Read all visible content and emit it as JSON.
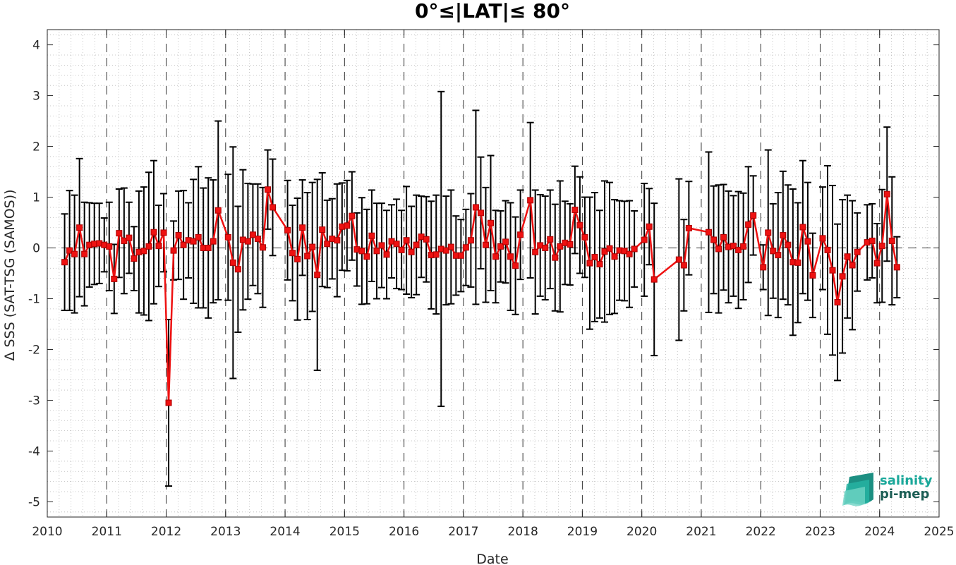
{
  "chart_data": {
    "type": "line",
    "title": "0°≤|LAT|≤ 80°",
    "xlabel": "Date",
    "ylabel": "Δ SSS (SAT-TSG (SAMOS))",
    "xlim": [
      2010,
      2025
    ],
    "ylim": [
      -5.3,
      4.3
    ],
    "x_ticks": [
      "2010",
      "2011",
      "2012",
      "2013",
      "2014",
      "2015",
      "2016",
      "2017",
      "2018",
      "2019",
      "2020",
      "2021",
      "2022",
      "2023",
      "2024",
      "2025"
    ],
    "y_ticks": [
      "-5",
      "-4",
      "-3",
      "-2",
      "-1",
      "0",
      "1",
      "2",
      "3",
      "4"
    ],
    "grid": "minor dotted",
    "year_separators": "dashed vertical lines at each year",
    "zero_line": "dashed horizontal line at 0",
    "series": [
      {
        "marker": "square",
        "color": "#ee1111",
        "errorbar_color": "#000000",
        "points": [
          {
            "x": "2010-04",
            "y": -0.28,
            "err": 0.95
          },
          {
            "x": "2010-05",
            "y": -0.05,
            "err": 1.18
          },
          {
            "x": "2010-06",
            "y": -0.12,
            "err": 1.16
          },
          {
            "x": "2010-07",
            "y": 0.4,
            "err": 1.36
          },
          {
            "x": "2010-08",
            "y": -0.12,
            "err": 1.02
          },
          {
            "x": "2010-09",
            "y": 0.06,
            "err": 0.83
          },
          {
            "x": "2010-10",
            "y": 0.08,
            "err": 0.8
          },
          {
            "x": "2010-11",
            "y": 0.09,
            "err": 0.79
          },
          {
            "x": "2010-12",
            "y": 0.06,
            "err": 0.53
          },
          {
            "x": "2011-01",
            "y": 0.03,
            "err": 0.87
          },
          {
            "x": "2011-02",
            "y": -0.61,
            "err": 0.68
          },
          {
            "x": "2011-03",
            "y": 0.29,
            "err": 0.87
          },
          {
            "x": "2011-04",
            "y": 0.14,
            "err": 1.04
          },
          {
            "x": "2011-05",
            "y": 0.2,
            "err": 0.7
          },
          {
            "x": "2011-06",
            "y": -0.21,
            "err": 0.63
          },
          {
            "x": "2011-07",
            "y": -0.08,
            "err": 1.2
          },
          {
            "x": "2011-08",
            "y": -0.06,
            "err": 1.26
          },
          {
            "x": "2011-09",
            "y": 0.03,
            "err": 1.46
          },
          {
            "x": "2011-10",
            "y": 0.31,
            "err": 1.41
          },
          {
            "x": "2011-11",
            "y": 0.04,
            "err": 0.8
          },
          {
            "x": "2011-12",
            "y": 0.3,
            "err": 0.77
          },
          {
            "x": "2012-01",
            "y": -3.05,
            "err": 1.64
          },
          {
            "x": "2012-02",
            "y": -0.05,
            "err": 0.58
          },
          {
            "x": "2012-03",
            "y": 0.25,
            "err": 0.87
          },
          {
            "x": "2012-04",
            "y": 0.06,
            "err": 1.07
          },
          {
            "x": "2012-05",
            "y": 0.15,
            "err": 0.74
          },
          {
            "x": "2012-06",
            "y": 0.13,
            "err": 1.22
          },
          {
            "x": "2012-07",
            "y": 0.21,
            "err": 1.39
          },
          {
            "x": "2012-08",
            "y": 0.0,
            "err": 1.18
          },
          {
            "x": "2012-09",
            "y": 0.0,
            "err": 1.38
          },
          {
            "x": "2012-10",
            "y": 0.13,
            "err": 1.21
          },
          {
            "x": "2012-11",
            "y": 0.74,
            "err": 1.76
          },
          {
            "x": "2013-01",
            "y": 0.21,
            "err": 1.24
          },
          {
            "x": "2013-02",
            "y": -0.29,
            "err": 2.28
          },
          {
            "x": "2013-03",
            "y": -0.42,
            "err": 1.24
          },
          {
            "x": "2013-04",
            "y": 0.16,
            "err": 1.38
          },
          {
            "x": "2013-05",
            "y": 0.13,
            "err": 1.14
          },
          {
            "x": "2013-06",
            "y": 0.26,
            "err": 1.0
          },
          {
            "x": "2013-07",
            "y": 0.18,
            "err": 1.08
          },
          {
            "x": "2013-08",
            "y": 0.01,
            "err": 1.18
          },
          {
            "x": "2013-09",
            "y": 1.15,
            "err": 0.78
          },
          {
            "x": "2013-10",
            "y": 0.8,
            "err": 0.95
          },
          {
            "x": "2014-01",
            "y": 0.35,
            "err": 0.98
          },
          {
            "x": "2014-02",
            "y": -0.1,
            "err": 0.94
          },
          {
            "x": "2014-03",
            "y": -0.22,
            "err": 1.2
          },
          {
            "x": "2014-04",
            "y": 0.4,
            "err": 0.94
          },
          {
            "x": "2014-05",
            "y": -0.16,
            "err": 1.25
          },
          {
            "x": "2014-06",
            "y": 0.02,
            "err": 1.27
          },
          {
            "x": "2014-07",
            "y": -0.53,
            "err": 1.88
          },
          {
            "x": "2014-08",
            "y": 0.36,
            "err": 1.12
          },
          {
            "x": "2014-09",
            "y": 0.08,
            "err": 0.86
          },
          {
            "x": "2014-10",
            "y": 0.18,
            "err": 0.79
          },
          {
            "x": "2014-11",
            "y": 0.15,
            "err": 1.11
          },
          {
            "x": "2014-12",
            "y": 0.42,
            "err": 0.86
          },
          {
            "x": "2015-01",
            "y": 0.44,
            "err": 0.89
          },
          {
            "x": "2015-02",
            "y": 0.63,
            "err": 0.87
          },
          {
            "x": "2015-03",
            "y": -0.03,
            "err": 0.72
          },
          {
            "x": "2015-04",
            "y": -0.06,
            "err": 1.05
          },
          {
            "x": "2015-05",
            "y": -0.17,
            "err": 0.93
          },
          {
            "x": "2015-06",
            "y": 0.24,
            "err": 0.9
          },
          {
            "x": "2015-07",
            "y": -0.06,
            "err": 0.94
          },
          {
            "x": "2015-08",
            "y": 0.05,
            "err": 0.83
          },
          {
            "x": "2015-09",
            "y": -0.13,
            "err": 0.87
          },
          {
            "x": "2015-10",
            "y": 0.13,
            "err": 0.72
          },
          {
            "x": "2015-11",
            "y": 0.08,
            "err": 0.88
          },
          {
            "x": "2015-12",
            "y": -0.04,
            "err": 0.78
          },
          {
            "x": "2016-01",
            "y": 0.15,
            "err": 1.06
          },
          {
            "x": "2016-02",
            "y": -0.08,
            "err": 0.9
          },
          {
            "x": "2016-03",
            "y": 0.06,
            "err": 0.98
          },
          {
            "x": "2016-04",
            "y": 0.22,
            "err": 0.8
          },
          {
            "x": "2016-05",
            "y": 0.17,
            "err": 0.84
          },
          {
            "x": "2016-06",
            "y": -0.14,
            "err": 1.06
          },
          {
            "x": "2016-07",
            "y": -0.13,
            "err": 1.17
          },
          {
            "x": "2016-08",
            "y": -0.02,
            "err": 3.1
          },
          {
            "x": "2016-09",
            "y": -0.05,
            "err": 1.07
          },
          {
            "x": "2016-10",
            "y": 0.02,
            "err": 1.12
          },
          {
            "x": "2016-11",
            "y": -0.15,
            "err": 0.78
          },
          {
            "x": "2016-12",
            "y": -0.15,
            "err": 0.71
          },
          {
            "x": "2017-01",
            "y": 0.01,
            "err": 0.75
          },
          {
            "x": "2017-02",
            "y": 0.15,
            "err": 0.92
          },
          {
            "x": "2017-03",
            "y": 0.8,
            "err": 1.91
          },
          {
            "x": "2017-04",
            "y": 0.69,
            "err": 1.1
          },
          {
            "x": "2017-05",
            "y": 0.06,
            "err": 1.13
          },
          {
            "x": "2017-06",
            "y": 0.49,
            "err": 1.33
          },
          {
            "x": "2017-07",
            "y": -0.17,
            "err": 0.91
          },
          {
            "x": "2017-08",
            "y": 0.03,
            "err": 0.7
          },
          {
            "x": "2017-09",
            "y": 0.12,
            "err": 0.81
          },
          {
            "x": "2017-10",
            "y": -0.17,
            "err": 1.06
          },
          {
            "x": "2017-11",
            "y": -0.35,
            "err": 0.96
          },
          {
            "x": "2017-12",
            "y": 0.26,
            "err": 0.88
          },
          {
            "x": "2018-02",
            "y": 0.94,
            "err": 1.53
          },
          {
            "x": "2018-03",
            "y": -0.08,
            "err": 1.22
          },
          {
            "x": "2018-04",
            "y": 0.05,
            "err": 1.0
          },
          {
            "x": "2018-05",
            "y": 0.0,
            "err": 1.02
          },
          {
            "x": "2018-06",
            "y": 0.17,
            "err": 0.97
          },
          {
            "x": "2018-07",
            "y": -0.19,
            "err": 1.05
          },
          {
            "x": "2018-08",
            "y": 0.03,
            "err": 1.29
          },
          {
            "x": "2018-09",
            "y": 0.1,
            "err": 0.82
          },
          {
            "x": "2018-10",
            "y": 0.07,
            "err": 0.8
          },
          {
            "x": "2018-11",
            "y": 0.75,
            "err": 0.86
          },
          {
            "x": "2018-12",
            "y": 0.45,
            "err": 0.95
          },
          {
            "x": "2019-01",
            "y": 0.21,
            "err": 0.79
          },
          {
            "x": "2019-02",
            "y": -0.3,
            "err": 1.3
          },
          {
            "x": "2019-03",
            "y": -0.18,
            "err": 1.27
          },
          {
            "x": "2019-04",
            "y": -0.32,
            "err": 1.06
          },
          {
            "x": "2019-05",
            "y": -0.07,
            "err": 1.39
          },
          {
            "x": "2019-06",
            "y": -0.01,
            "err": 1.3
          },
          {
            "x": "2019-07",
            "y": -0.17,
            "err": 1.12
          },
          {
            "x": "2019-08",
            "y": -0.05,
            "err": 0.98
          },
          {
            "x": "2019-09",
            "y": -0.06,
            "err": 0.98
          },
          {
            "x": "2019-10",
            "y": -0.12,
            "err": 1.05
          },
          {
            "x": "2019-11",
            "y": -0.02,
            "err": 0.75
          },
          {
            "x": "2020-01",
            "y": 0.16,
            "err": 1.11
          },
          {
            "x": "2020-02",
            "y": 0.42,
            "err": 0.75
          },
          {
            "x": "2020-03",
            "y": -0.62,
            "err": 1.5
          },
          {
            "x": "2020-08",
            "y": -0.23,
            "err": 1.59
          },
          {
            "x": "2020-09",
            "y": -0.34,
            "err": 0.9
          },
          {
            "x": "2020-10",
            "y": 0.39,
            "err": 0.92
          },
          {
            "x": "2021-02",
            "y": 0.31,
            "err": 1.58
          },
          {
            "x": "2021-03",
            "y": 0.16,
            "err": 1.06
          },
          {
            "x": "2021-04",
            "y": -0.02,
            "err": 1.26
          },
          {
            "x": "2021-05",
            "y": 0.21,
            "err": 1.04
          },
          {
            "x": "2021-06",
            "y": 0.02,
            "err": 1.1
          },
          {
            "x": "2021-07",
            "y": 0.04,
            "err": 0.99
          },
          {
            "x": "2021-08",
            "y": -0.04,
            "err": 1.15
          },
          {
            "x": "2021-09",
            "y": 0.03,
            "err": 1.05
          },
          {
            "x": "2021-10",
            "y": 0.46,
            "err": 1.14
          },
          {
            "x": "2021-11",
            "y": 0.64,
            "err": 0.78
          },
          {
            "x": "2022-01",
            "y": -0.38,
            "err": 0.44
          },
          {
            "x": "2022-02",
            "y": 0.3,
            "err": 1.63
          },
          {
            "x": "2022-03",
            "y": -0.06,
            "err": 0.93
          },
          {
            "x": "2022-04",
            "y": -0.14,
            "err": 1.23
          },
          {
            "x": "2022-05",
            "y": 0.25,
            "err": 1.26
          },
          {
            "x": "2022-06",
            "y": 0.06,
            "err": 1.18
          },
          {
            "x": "2022-07",
            "y": -0.28,
            "err": 1.44
          },
          {
            "x": "2022-08",
            "y": -0.29,
            "err": 1.18
          },
          {
            "x": "2022-09",
            "y": 0.41,
            "err": 1.31
          },
          {
            "x": "2022-10",
            "y": 0.13,
            "err": 1.16
          },
          {
            "x": "2022-11",
            "y": -0.54,
            "err": 0.83
          },
          {
            "x": "2023-01",
            "y": 0.19,
            "err": 1.01
          },
          {
            "x": "2023-02",
            "y": -0.04,
            "err": 1.66
          },
          {
            "x": "2023-03",
            "y": -0.44,
            "err": 1.67
          },
          {
            "x": "2023-04",
            "y": -1.07,
            "err": 1.54
          },
          {
            "x": "2023-05",
            "y": -0.56,
            "err": 1.51
          },
          {
            "x": "2023-06",
            "y": -0.17,
            "err": 1.21
          },
          {
            "x": "2023-07",
            "y": -0.34,
            "err": 1.27
          },
          {
            "x": "2023-08",
            "y": -0.08,
            "err": 0.77
          },
          {
            "x": "2023-10",
            "y": 0.11,
            "err": 0.74
          },
          {
            "x": "2023-11",
            "y": 0.14,
            "err": 0.73
          },
          {
            "x": "2023-12",
            "y": -0.3,
            "err": 0.78
          },
          {
            "x": "2024-01",
            "y": 0.04,
            "err": 1.11
          },
          {
            "x": "2024-02",
            "y": 1.06,
            "err": 1.32
          },
          {
            "x": "2024-03",
            "y": 0.14,
            "err": 1.26
          },
          {
            "x": "2024-04",
            "y": -0.38,
            "err": 0.6
          }
        ]
      }
    ]
  },
  "logo": {
    "line1": "salinity",
    "line2": "pi-mep",
    "color1": "#1aa89a",
    "color2": "#1c5e55"
  }
}
